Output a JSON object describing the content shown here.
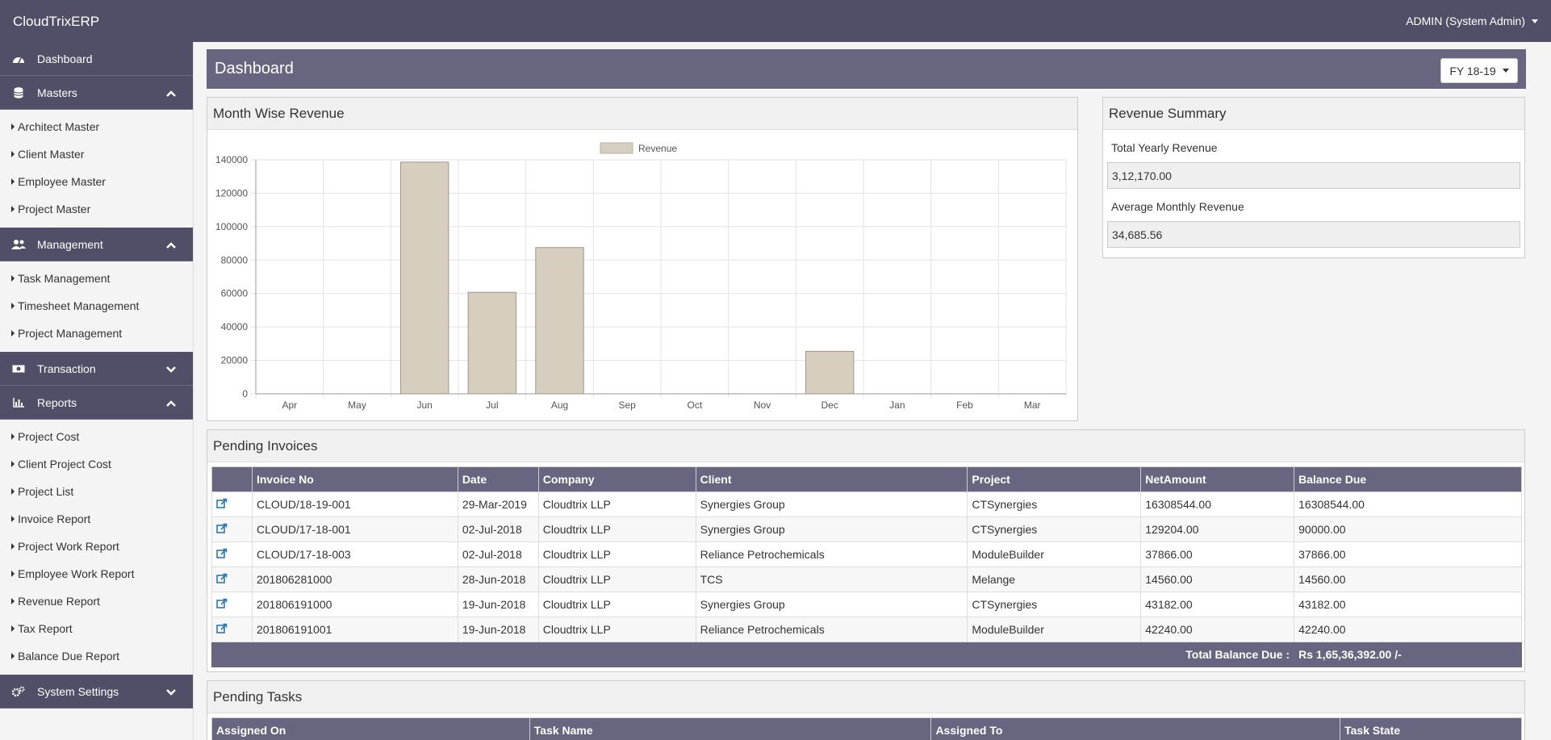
{
  "app": {
    "title": "CloudTrixERP",
    "user": "ADMIN (System Admin)"
  },
  "sidebar": {
    "dashboard": "Dashboard",
    "masters": {
      "label": "Masters",
      "items": [
        "Architect Master",
        "Client Master",
        "Employee Master",
        "Project Master"
      ]
    },
    "management": {
      "label": "Management",
      "items": [
        "Task Management",
        "Timesheet Management",
        "Project Management"
      ]
    },
    "transaction": {
      "label": "Transaction"
    },
    "reports": {
      "label": "Reports",
      "items": [
        "Project Cost",
        "Client Project Cost",
        "Project List",
        "Invoice Report",
        "Project Work Report",
        "Employee Work Report",
        "Revenue Report",
        "Tax Report",
        "Balance Due Report"
      ]
    },
    "system_settings": {
      "label": "System Settings"
    }
  },
  "page": {
    "title": "Dashboard",
    "fy": "FY 18-19"
  },
  "chart_panel": {
    "title": "Month Wise Revenue"
  },
  "chart_data": {
    "type": "bar",
    "categories": [
      "Apr",
      "May",
      "Jun",
      "Jul",
      "Aug",
      "Sep",
      "Oct",
      "Nov",
      "Dec",
      "Jan",
      "Feb",
      "Mar"
    ],
    "series": [
      {
        "name": "Revenue",
        "values": [
          0,
          0,
          138600,
          60700,
          87500,
          0,
          0,
          0,
          25400,
          0,
          0,
          0
        ]
      }
    ],
    "ylim": [
      0,
      140000
    ],
    "yticks": [
      0,
      20000,
      40000,
      60000,
      80000,
      100000,
      120000,
      140000
    ],
    "legend": "top-center",
    "grid": true,
    "bar_color": "#d6cfc0"
  },
  "summary": {
    "title": "Revenue Summary",
    "yearly_label": "Total Yearly Revenue",
    "yearly_value": "3,12,170.00",
    "monthly_label": "Average Monthly Revenue",
    "monthly_value": "34,685.56"
  },
  "invoices": {
    "title": "Pending Invoices",
    "columns": [
      "",
      "Invoice No",
      "Date",
      "Company",
      "Client",
      "Project",
      "NetAmount",
      "Balance Due"
    ],
    "rows": [
      [
        "CLOUD/18-19-001",
        "29-Mar-2019",
        "Cloudtrix LLP",
        "Synergies Group",
        "CTSynergies",
        "16308544.00",
        "16308544.00"
      ],
      [
        "CLOUD/17-18-001",
        "02-Jul-2018",
        "Cloudtrix LLP",
        "Synergies Group",
        "CTSynergies",
        "129204.00",
        "90000.00"
      ],
      [
        "CLOUD/17-18-003",
        "02-Jul-2018",
        "Cloudtrix LLP",
        "Reliance Petrochemicals",
        "ModuleBuilder",
        "37866.00",
        "37866.00"
      ],
      [
        "201806281000",
        "28-Jun-2018",
        "Cloudtrix LLP",
        "TCS",
        "Melange",
        "14560.00",
        "14560.00"
      ],
      [
        "201806191000",
        "19-Jun-2018",
        "Cloudtrix LLP",
        "Synergies Group",
        "CTSynergies",
        "43182.00",
        "43182.00"
      ],
      [
        "201806191001",
        "19-Jun-2018",
        "Cloudtrix LLP",
        "Reliance Petrochemicals",
        "ModuleBuilder",
        "42240.00",
        "42240.00"
      ]
    ],
    "total_label": "Total Balance Due :",
    "total_value": "Rs 1,65,36,392.00 /-"
  },
  "tasks": {
    "title": "Pending Tasks",
    "columns": [
      "Assigned On",
      "Task Name",
      "Assigned To",
      "Task State"
    ]
  },
  "colors": {
    "header": "#514f67",
    "panel_header": "#676580",
    "bar": "#d6cfc0",
    "link": "#2a7ab8"
  }
}
